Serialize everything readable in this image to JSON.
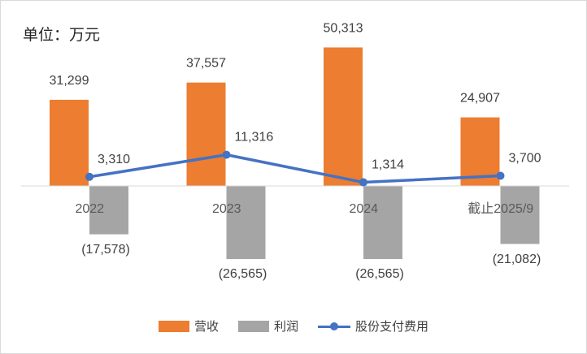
{
  "unit_label": "单位：万元",
  "chart_data": {
    "type": "bar",
    "categories": [
      "2022",
      "2023",
      "2024",
      "截止2025/9"
    ],
    "series": [
      {
        "name": "营收",
        "kind": "bar",
        "color": "#ED7D31",
        "values": [
          31299,
          37557,
          50313,
          24907
        ],
        "labels": [
          "31,299",
          "37,557",
          "50,313",
          "24,907"
        ]
      },
      {
        "name": "利润",
        "kind": "bar",
        "color": "#A5A5A5",
        "values": [
          -17578,
          -26565,
          -26565,
          -21082
        ],
        "labels": [
          "(17,578)",
          "(26,565)",
          "(26,565)",
          "(21,082)"
        ]
      },
      {
        "name": "股份支付费用",
        "kind": "line",
        "color": "#4472C4",
        "values": [
          3310,
          11316,
          1314,
          3700
        ],
        "labels": [
          "3,310",
          "11,316",
          "1,314",
          "3,700"
        ]
      }
    ],
    "ylim": [
      -30000,
      60000
    ],
    "grid": false,
    "legend_position": "bottom"
  }
}
